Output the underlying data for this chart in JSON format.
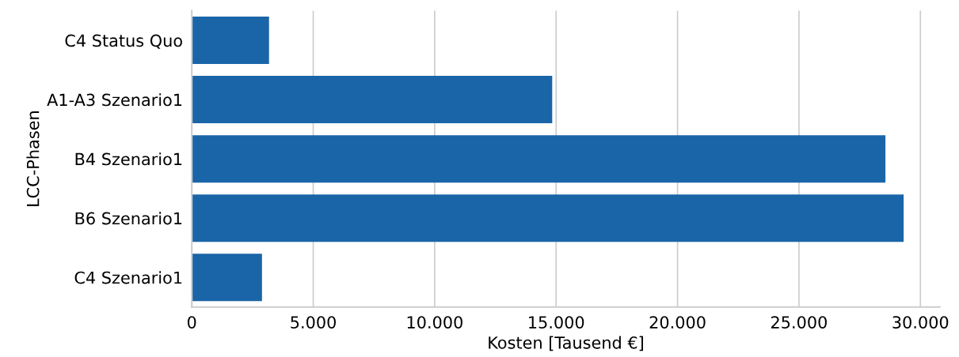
{
  "chart_data": {
    "type": "bar",
    "orientation": "horizontal",
    "xlabel": "Kosten [Tausend €]",
    "ylabel": "LCC-Phasen",
    "categories": [
      "C4 Status Quo",
      "A1-A3 Szenario1",
      "B4 Szenario1",
      "B6 Szenario1",
      "C4 Szenario1"
    ],
    "values": [
      3180,
      14840,
      28560,
      29310,
      2890
    ],
    "color": "#1a65a8",
    "xlim": [
      0,
      30800
    ],
    "xticks": [
      0,
      {
        "value": 5000,
        "label": "5.000"
      },
      {
        "value": 10000,
        "label": "10.000"
      },
      {
        "value": 15000,
        "label": "15.000"
      },
      {
        "value": 20000,
        "label": "20.000"
      },
      {
        "value": 25000,
        "label": "25.000"
      },
      {
        "value": 30000,
        "label": "30.000"
      }
    ],
    "grid": "x",
    "legend": false
  }
}
